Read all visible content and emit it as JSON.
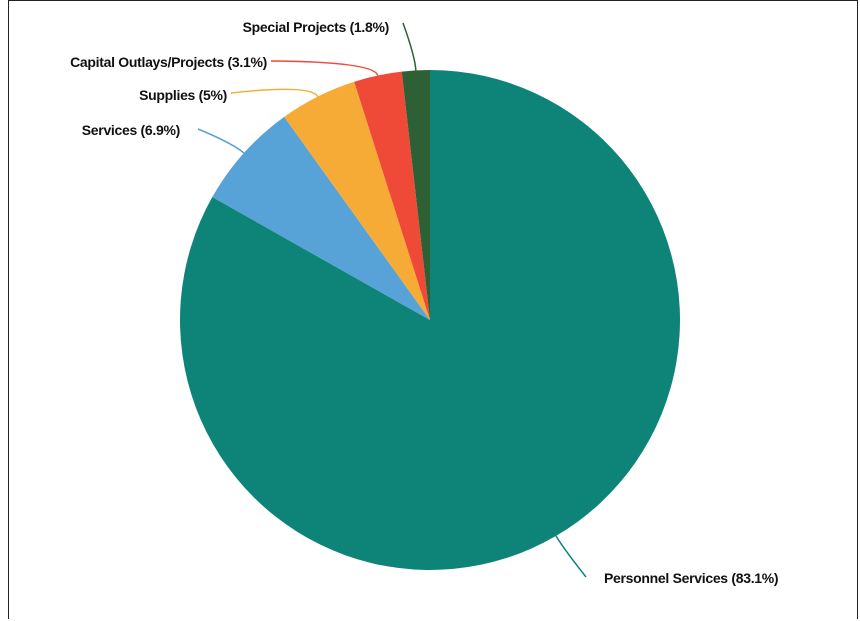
{
  "chart_data": {
    "type": "pie",
    "title": "",
    "slices": [
      {
        "label": "Personnel Services (83.1%)",
        "name": "Personnel Services",
        "value": 83.1,
        "color": "#0e8478"
      },
      {
        "label": "Services (6.9%)",
        "name": "Services",
        "value": 6.9,
        "color": "#57a2d6"
      },
      {
        "label": "Supplies (5%)",
        "name": "Supplies",
        "value": 5,
        "color": "#f6ab36"
      },
      {
        "label": "Capital Outlays/Projects (3.1%)",
        "name": "Capital Outlays/Projects",
        "value": 3.1,
        "color": "#ef4a38"
      },
      {
        "label": "Special Projects (1.8%)",
        "name": "Special Projects",
        "value": 1.8,
        "color": "#2d6035"
      }
    ],
    "start": "top",
    "direction": "clockwise"
  }
}
